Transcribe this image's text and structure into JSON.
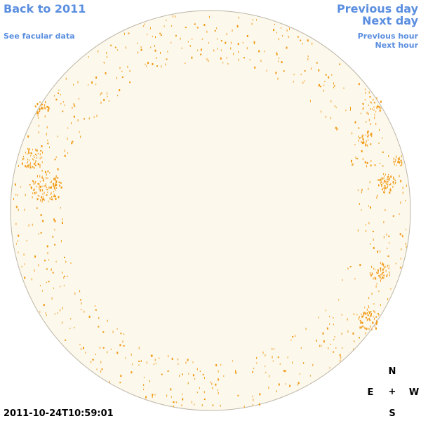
{
  "nav": {
    "back_label": "Back to 2011",
    "facular_label": "See facular data",
    "previous_day_label": "Previous day",
    "next_day_label": "Next day",
    "previous_hour_label": "Previous hour",
    "next_hour_label": "Next hour"
  },
  "compass": {
    "north": "N",
    "east": "E",
    "center": "+",
    "west": "W",
    "south": "S"
  },
  "timestamp": "2011-10-24T10:59:01",
  "colors": {
    "link": "#5a8ee0",
    "disk_fill": "#fdf8ec",
    "disk_edge": "#bdb6a8",
    "facula": "#f09a14"
  }
}
